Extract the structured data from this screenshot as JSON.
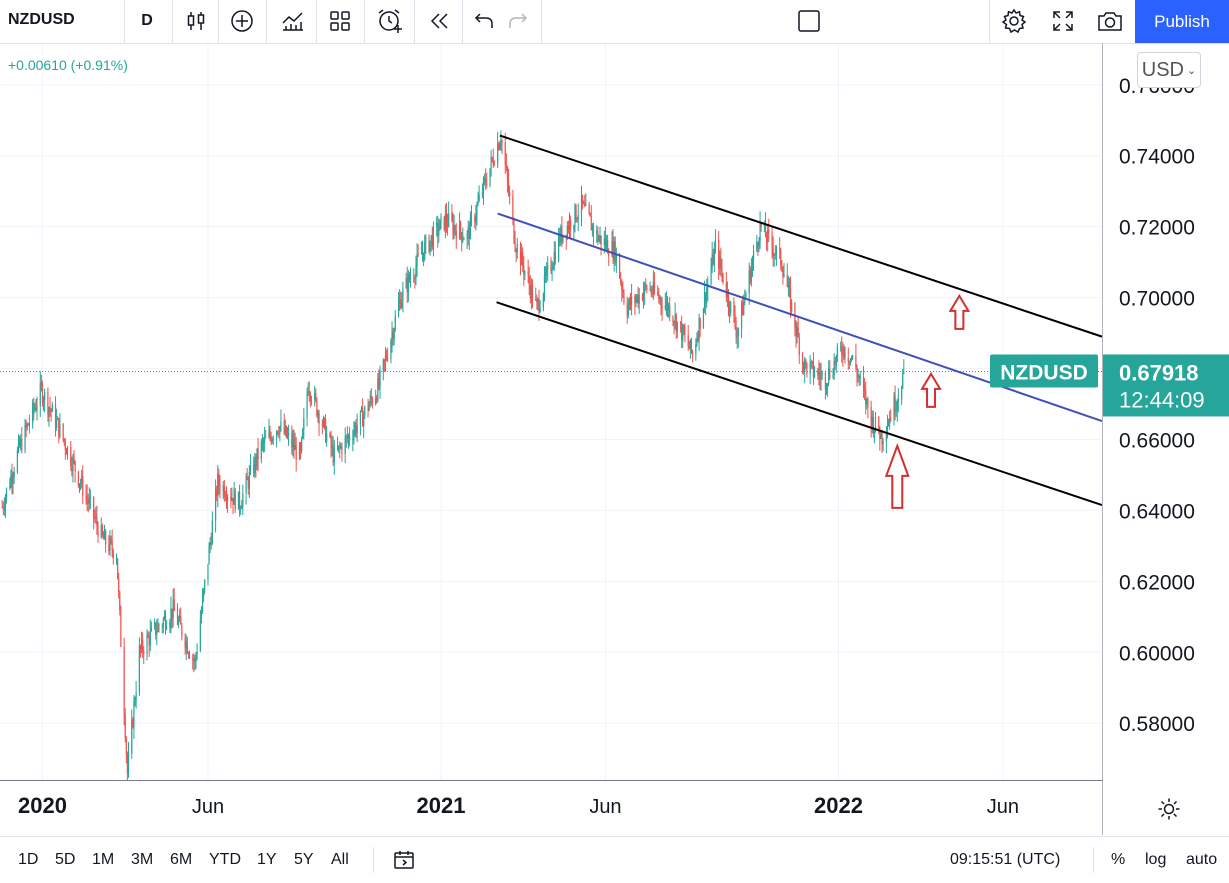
{
  "toolbar": {
    "symbol": "NZDUSD",
    "interval": "D",
    "publish_label": "Publish",
    "icons": [
      "candles-icon",
      "add-compare-icon",
      "indicators-icon",
      "layout-icon",
      "alert-icon",
      "replay-icon",
      "undo-icon",
      "redo-icon",
      "fullscreen-square-icon",
      "settings-icon",
      "expand-icon",
      "camera-icon"
    ]
  },
  "header": {
    "change_text": "+0.00610 (+0.91%)",
    "currency_label": "USD"
  },
  "price_label": {
    "symbol": "NZDUSD",
    "price": "0.67918",
    "countdown": "12:44:09"
  },
  "bottom": {
    "ranges": [
      "1D",
      "5D",
      "1M",
      "3M",
      "6M",
      "YTD",
      "1Y",
      "5Y",
      "All"
    ],
    "time": "09:15:51 (UTC)",
    "percent_label": "%",
    "log_label": "log",
    "auto_label": "auto"
  },
  "colors": {
    "up": "#26a69a",
    "down": "#ef5350",
    "accent": "#2962ff",
    "channel": "#000000",
    "midline": "#3f51b5",
    "arrow": "#d32f2f"
  },
  "chart_data": {
    "type": "candlestick",
    "title": "",
    "y_ticks": [
      "0.76000",
      "0.74000",
      "0.72000",
      "0.70000",
      "0.68000",
      "0.66000",
      "0.64000",
      "0.62000",
      "0.60000",
      "0.58000"
    ],
    "x_ticks": [
      {
        "label": "2020",
        "date": "2020-01-01",
        "bold": true
      },
      {
        "label": "Jun",
        "date": "2020-06-01",
        "bold": false
      },
      {
        "label": "2021",
        "date": "2021-01-01",
        "bold": true
      },
      {
        "label": "Jun",
        "date": "2021-06-01",
        "bold": false
      },
      {
        "label": "2022",
        "date": "2022-01-01",
        "bold": true
      },
      {
        "label": "Jun",
        "date": "2022-06-01",
        "bold": false
      }
    ],
    "ylim": [
      0.564,
      0.7715
    ],
    "xlim": [
      "2019-11-23",
      "2022-08-31"
    ],
    "last_price": 0.67918,
    "path": [
      [
        "2019-11-25",
        0.641
      ],
      [
        "2019-12-10",
        0.657
      ],
      [
        "2019-12-31",
        0.674
      ],
      [
        "2020-01-15",
        0.664
      ],
      [
        "2020-02-05",
        0.648
      ],
      [
        "2020-02-25",
        0.632
      ],
      [
        "2020-03-09",
        0.628
      ],
      [
        "2020-03-19",
        0.566
      ],
      [
        "2020-03-30",
        0.6
      ],
      [
        "2020-04-10",
        0.605
      ],
      [
        "2020-04-30",
        0.612
      ],
      [
        "2020-05-20",
        0.597
      ],
      [
        "2020-06-10",
        0.648
      ],
      [
        "2020-06-30",
        0.642
      ],
      [
        "2020-07-20",
        0.658
      ],
      [
        "2020-08-05",
        0.664
      ],
      [
        "2020-08-25",
        0.655
      ],
      [
        "2020-09-01",
        0.676
      ],
      [
        "2020-09-25",
        0.655
      ],
      [
        "2020-10-20",
        0.666
      ],
      [
        "2020-11-05",
        0.675
      ],
      [
        "2020-11-25",
        0.7
      ],
      [
        "2020-12-15",
        0.713
      ],
      [
        "2021-01-05",
        0.722
      ],
      [
        "2021-01-25",
        0.717
      ],
      [
        "2021-02-25",
        0.746
      ],
      [
        "2021-03-10",
        0.716
      ],
      [
        "2021-03-30",
        0.697
      ],
      [
        "2021-04-20",
        0.717
      ],
      [
        "2021-05-10",
        0.726
      ],
      [
        "2021-05-25",
        0.717
      ],
      [
        "2021-06-10",
        0.713
      ],
      [
        "2021-06-20",
        0.697
      ],
      [
        "2021-07-10",
        0.703
      ],
      [
        "2021-07-30",
        0.697
      ],
      [
        "2021-08-20",
        0.684
      ],
      [
        "2021-09-10",
        0.714
      ],
      [
        "2021-09-30",
        0.69
      ],
      [
        "2021-10-21",
        0.72
      ],
      [
        "2021-11-10",
        0.71
      ],
      [
        "2021-11-30",
        0.681
      ],
      [
        "2021-12-20",
        0.677
      ],
      [
        "2022-01-05",
        0.686
      ],
      [
        "2022-01-15",
        0.682
      ],
      [
        "2022-02-01",
        0.665
      ],
      [
        "2022-02-10",
        0.661
      ],
      [
        "2022-02-24",
        0.672
      ],
      [
        "2022-03-02",
        0.679
      ]
    ]
  },
  "drawings": {
    "upper_channel": [
      [
        "2021-02-24",
        0.7457
      ],
      [
        "2022-08-31",
        0.689
      ]
    ],
    "mid_line": [
      [
        "2021-02-22",
        0.7237
      ],
      [
        "2022-08-31",
        0.6652
      ]
    ],
    "lower_channel": [
      [
        "2021-02-21",
        0.6987
      ],
      [
        "2022-08-31",
        0.6415
      ]
    ],
    "up_arrows": [
      {
        "date": "2022-04-22",
        "value": 0.7005
      },
      {
        "date": "2022-03-27",
        "value": 0.6785
      },
      {
        "date": "2022-02-24",
        "value": 0.6582
      }
    ]
  }
}
